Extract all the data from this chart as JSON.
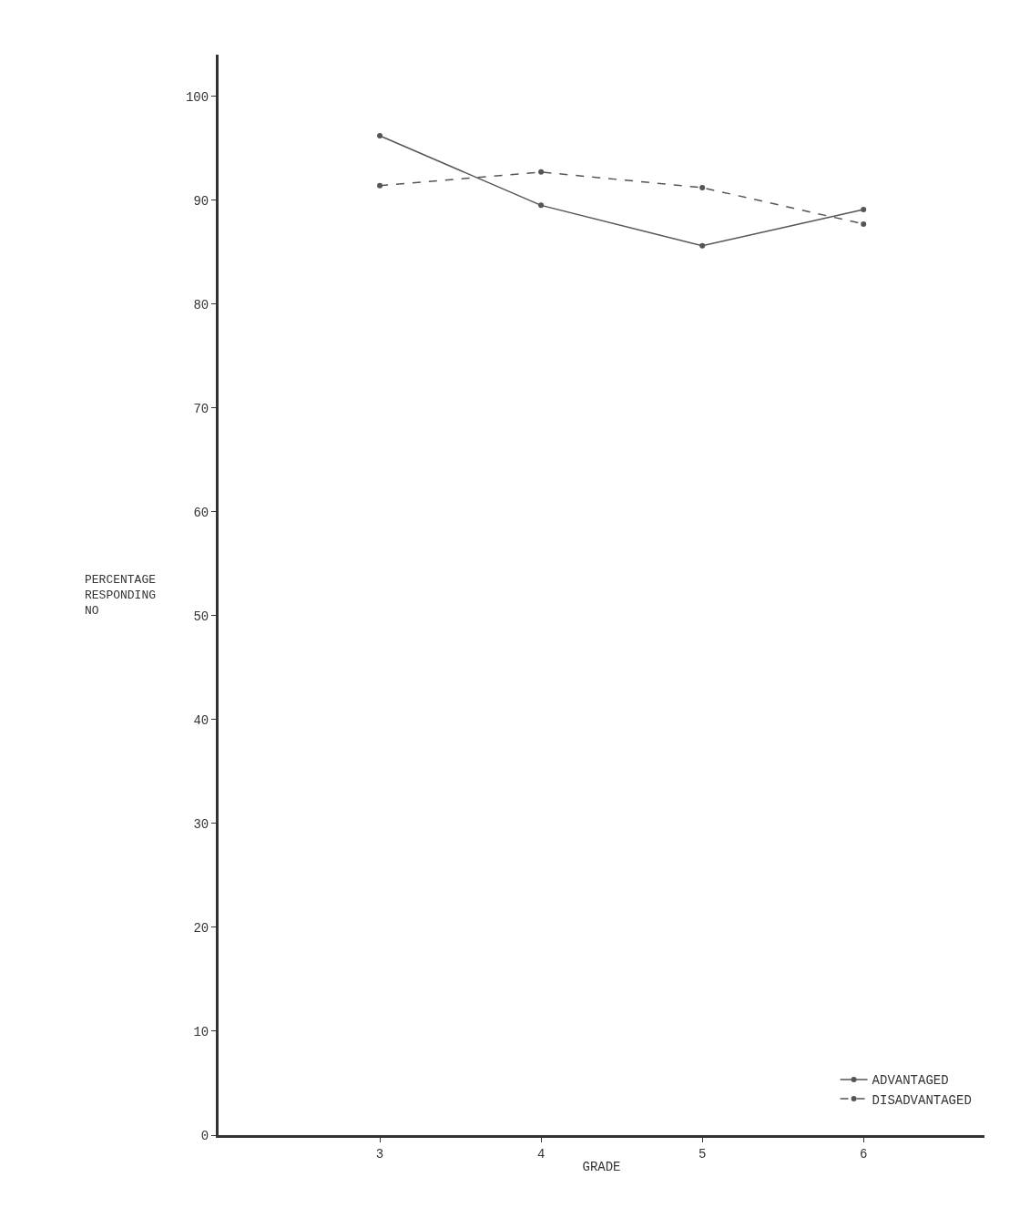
{
  "chart_data": {
    "type": "line",
    "xlabel": "GRADE",
    "ylabel": "PERCENTAGE\nRESPONDING\nNO",
    "x": [
      3,
      4,
      5,
      6
    ],
    "series": [
      {
        "name": "ADVANTAGED",
        "color": "#555555",
        "values": [
          96.2,
          89.5,
          85.6,
          89.1
        ],
        "line_style": "solid"
      },
      {
        "name": "DISADVANTAGED",
        "color": "#555555",
        "values": [
          91.4,
          92.7,
          91.2,
          87.7
        ],
        "line_style": "dashed"
      }
    ],
    "xlim": [
      2,
      6.75
    ],
    "xticks": [
      3,
      4,
      5,
      6
    ],
    "ylim": [
      0,
      104
    ],
    "yticks": [
      0,
      10,
      20,
      30,
      40,
      50,
      60,
      70,
      80,
      90,
      100
    ],
    "legend": "bottom right",
    "marker": "circle"
  }
}
